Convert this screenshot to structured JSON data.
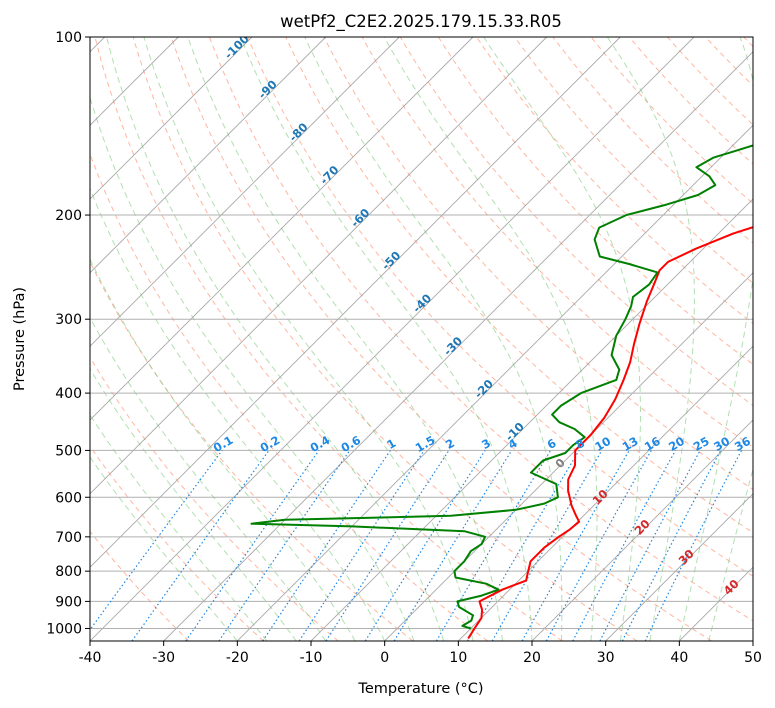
{
  "chart_data": {
    "type": "line",
    "title": "wetPf2_C2E2.2025.179.15.33.R05",
    "xlabel": "Temperature (°C)",
    "ylabel": "Pressure (hPa)",
    "xlim": [
      -40,
      50
    ],
    "ylim": [
      1050,
      100
    ],
    "y_scale": "log",
    "grid": true,
    "x_ticks": [
      -40,
      -30,
      -20,
      -10,
      0,
      10,
      20,
      30,
      40,
      50
    ],
    "y_ticks": [
      1000,
      900,
      800,
      700,
      600,
      500,
      400,
      300,
      200,
      100
    ],
    "colors": {
      "temperature": "#ff0000",
      "dewpoint": "#008000",
      "dry_adiabat": "#ff9e80",
      "moist_adiabat": "#7fc97f",
      "mixing_ratio": "#1e88e5",
      "isotherm": "#999999",
      "dry_adiabat_label": "#d62728",
      "isotherm_label": "#1f77b4",
      "zero_label": "#808080"
    },
    "series": [
      {
        "key": "temperature",
        "points": [
          [
            11,
            1040
          ],
          [
            10.5,
            1000
          ],
          [
            10,
            960
          ],
          [
            9,
            930
          ],
          [
            7.5,
            900
          ],
          [
            9,
            860
          ],
          [
            11,
            830
          ],
          [
            10,
            800
          ],
          [
            9,
            770
          ],
          [
            9,
            730
          ],
          [
            9.5,
            700
          ],
          [
            10,
            680
          ],
          [
            10.2,
            660
          ],
          [
            9,
            645
          ],
          [
            7,
            620
          ],
          [
            4.5,
            585
          ],
          [
            3,
            560
          ],
          [
            2,
            530
          ],
          [
            0,
            500
          ],
          [
            0,
            470
          ],
          [
            -0.5,
            440
          ],
          [
            -1.5,
            410
          ],
          [
            -3,
            380
          ],
          [
            -4.5,
            355
          ],
          [
            -6.5,
            330
          ],
          [
            -8.5,
            305
          ],
          [
            -10.5,
            280
          ],
          [
            -12,
            260
          ],
          [
            -13,
            248
          ],
          [
            -13,
            240
          ],
          [
            -11,
            228
          ],
          [
            -8,
            215
          ],
          [
            -4.5,
            205
          ],
          [
            -3,
            195
          ],
          [
            -2,
            185
          ],
          [
            -2,
            175
          ],
          [
            -1,
            165
          ],
          [
            -1,
            160
          ],
          [
            0,
            150
          ],
          [
            0,
            140
          ],
          [
            -0.5,
            130
          ],
          [
            -0.5,
            120
          ],
          [
            0.5,
            113
          ],
          [
            0.5,
            108
          ],
          [
            1,
            100
          ]
        ]
      },
      {
        "key": "dewpoint",
        "points": [
          [
            10,
            1000
          ],
          [
            8.5,
            990
          ],
          [
            9,
            970
          ],
          [
            8.5,
            950
          ],
          [
            5.5,
            920
          ],
          [
            4.5,
            900
          ],
          [
            7,
            880
          ],
          [
            8.5,
            860
          ],
          [
            6,
            840
          ],
          [
            1,
            820
          ],
          [
            0,
            800
          ],
          [
            0,
            770
          ],
          [
            -0.5,
            740
          ],
          [
            0,
            720
          ],
          [
            -0.5,
            700
          ],
          [
            -4,
            685
          ],
          [
            -20,
            672
          ],
          [
            -34,
            665
          ],
          [
            -30,
            655
          ],
          [
            -8,
            645
          ],
          [
            0,
            630
          ],
          [
            3,
            615
          ],
          [
            4,
            600
          ],
          [
            2,
            570
          ],
          [
            -3,
            545
          ],
          [
            -3,
            520
          ],
          [
            -1,
            505
          ],
          [
            -1,
            490
          ],
          [
            -0.5,
            475
          ],
          [
            -3,
            460
          ],
          [
            -6,
            448
          ],
          [
            -8,
            435
          ],
          [
            -8,
            420
          ],
          [
            -7,
            400
          ],
          [
            -4,
            380
          ],
          [
            -5,
            365
          ],
          [
            -8,
            345
          ],
          [
            -10,
            320
          ],
          [
            -11,
            300
          ],
          [
            -12,
            285
          ],
          [
            -13,
            275
          ],
          [
            -12.5,
            262
          ],
          [
            -13,
            250
          ],
          [
            -18,
            242
          ],
          [
            -23,
            235
          ],
          [
            -26,
            220
          ],
          [
            -27,
            210
          ],
          [
            -25,
            200
          ],
          [
            -21,
            192
          ],
          [
            -18,
            185
          ],
          [
            -17,
            178
          ],
          [
            -19,
            172
          ],
          [
            -22,
            166
          ],
          [
            -21,
            160
          ],
          [
            -19,
            156
          ],
          [
            -16,
            150
          ],
          [
            -14,
            143
          ],
          [
            -13,
            135
          ],
          [
            -11,
            128
          ],
          [
            -10.5,
            121
          ],
          [
            -10,
            115
          ],
          [
            -8,
            110
          ],
          [
            -6,
            105
          ],
          [
            -3,
            100
          ]
        ]
      }
    ],
    "isotherm_labels": [
      {
        "t": -100,
        "text": "-100"
      },
      {
        "t": -90,
        "text": "-90"
      },
      {
        "t": -80,
        "text": "-80"
      },
      {
        "t": -70,
        "text": "-70"
      },
      {
        "t": -60,
        "text": "-60"
      },
      {
        "t": -50,
        "text": "-50"
      },
      {
        "t": -40,
        "text": "-40"
      },
      {
        "t": -30,
        "text": "-30"
      },
      {
        "t": -20,
        "text": "-20"
      },
      {
        "t": -10,
        "text": "-10"
      }
    ],
    "zero_label": "0",
    "mixing_ratio_labels": [
      "0.1",
      "0.2",
      "0.4",
      "0.6",
      "1",
      "1.5",
      "2",
      "3",
      "4",
      "6",
      "8",
      "10",
      "13",
      "16",
      "20",
      "25",
      "30",
      "36"
    ],
    "dry_adiabat_labels": [
      "10",
      "20",
      "30",
      "40"
    ]
  }
}
